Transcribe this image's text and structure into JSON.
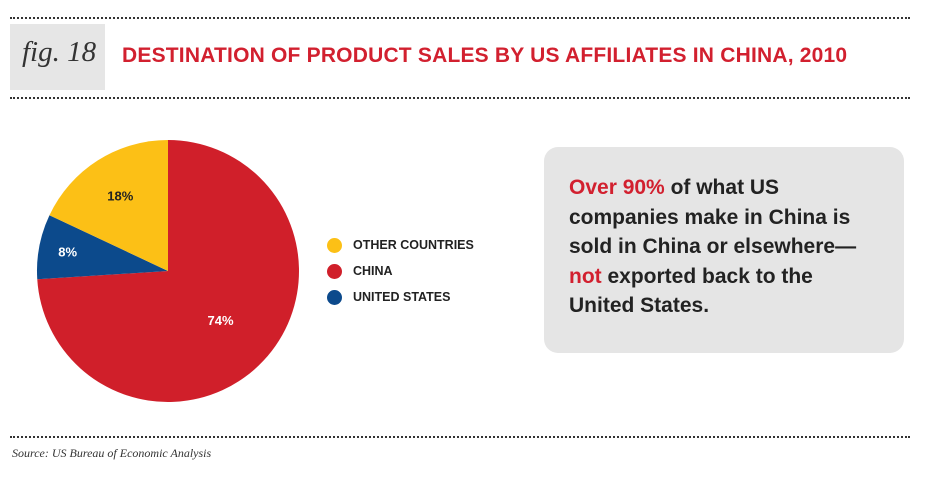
{
  "figure": {
    "label": "fig. 18",
    "title": "DESTINATION OF PRODUCT SALES BY US AFFILIATES IN CHINA, 2010"
  },
  "callout": {
    "parts": [
      {
        "text": "Over 90%",
        "highlight": true
      },
      {
        "text": " of what US companies make in China is sold in China or elsewhere—",
        "highlight": false
      },
      {
        "text": "not",
        "highlight": true
      },
      {
        "text": " exported back to the United States.",
        "highlight": false
      }
    ]
  },
  "source": "Source: US Bureau of Economic Analysis",
  "colors": {
    "accent_red": "#d2202f",
    "china": "#d01f2a",
    "other_countries": "#fcc016",
    "united_states": "#0c4a8c",
    "callout_bg": "#e5e5e5",
    "fig_box_bg": "#e6e6e6"
  },
  "chart_data": {
    "type": "pie",
    "title": "DESTINATION OF PRODUCT SALES BY US AFFILIATES IN CHINA, 2010",
    "slices": [
      {
        "name": "CHINA",
        "value": 74,
        "label": "74%",
        "color": "#d01f2a"
      },
      {
        "name": "UNITED STATES",
        "value": 8,
        "label": "8%",
        "color": "#0c4a8c"
      },
      {
        "name": "OTHER COUNTRIES",
        "value": 18,
        "label": "18%",
        "color": "#fcc016"
      }
    ],
    "legend": [
      {
        "name": "OTHER COUNTRIES",
        "color": "#fcc016"
      },
      {
        "name": "CHINA",
        "color": "#d01f2a"
      },
      {
        "name": "UNITED STATES",
        "color": "#0c4a8c"
      }
    ],
    "legend_position": "right"
  }
}
